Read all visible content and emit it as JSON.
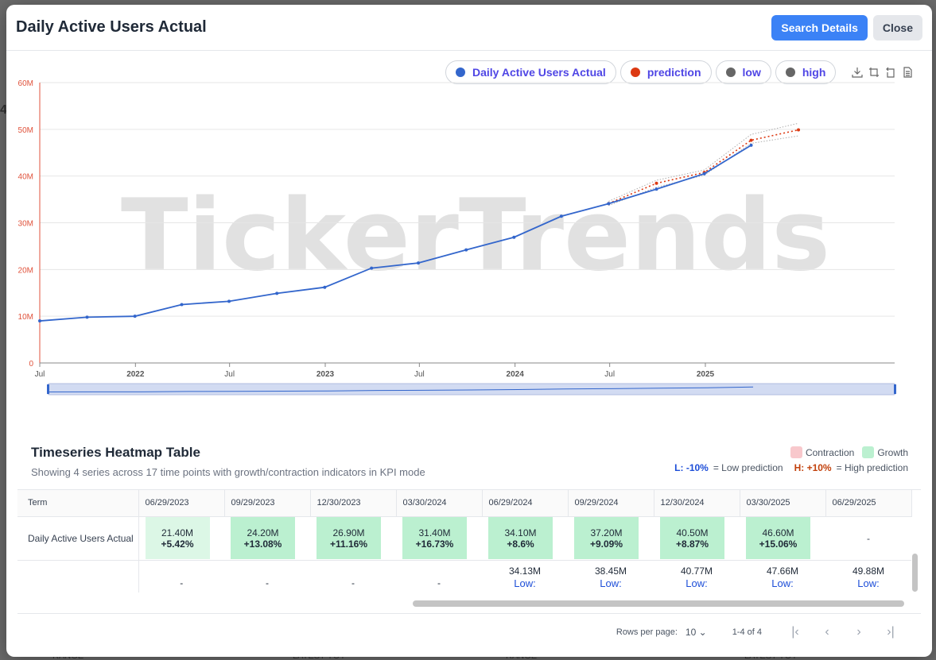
{
  "modal": {
    "title": "Daily Active Users Actual",
    "search_button": "Search Details",
    "close_button": "Close"
  },
  "legend": [
    {
      "label": "Daily Active Users Actual",
      "color": "#3366cc"
    },
    {
      "label": "prediction",
      "color": "#dc3912"
    },
    {
      "label": "low",
      "color": "#666666"
    },
    {
      "label": "high",
      "color": "#666666"
    }
  ],
  "watermark": "TickerTrends",
  "chart_data": {
    "type": "line",
    "y_ticks": [
      "0",
      "10M",
      "20M",
      "30M",
      "40M",
      "50M",
      "60M"
    ],
    "ylim": [
      0,
      60000000
    ],
    "x_ticks": [
      "Jul",
      "2022",
      "Jul",
      "2023",
      "Jul",
      "2024",
      "Jul",
      "2025"
    ],
    "x_tick_dates": [
      "2021-07-01",
      "2022-01-01",
      "2022-07-01",
      "2023-01-01",
      "2023-07-01",
      "2024-01-01",
      "2024-07-01",
      "2025-01-01"
    ],
    "xlim": [
      "2021-07-01",
      "2025-12-31"
    ],
    "grid": true,
    "series": [
      {
        "name": "Daily Active Users Actual",
        "color": "#3366cc",
        "style": "solid",
        "x": [
          "2021-07-01",
          "2021-09-30",
          "2021-12-31",
          "2022-03-31",
          "2022-06-30",
          "2022-09-30",
          "2022-12-31",
          "2023-03-31",
          "2023-06-29",
          "2023-09-29",
          "2023-12-30",
          "2024-03-30",
          "2024-06-29",
          "2024-09-29",
          "2024-12-30",
          "2025-03-30"
        ],
        "values": [
          9.0,
          9.8,
          10.0,
          12.5,
          13.2,
          14.9,
          16.2,
          20.3,
          21.4,
          24.2,
          26.9,
          31.4,
          34.1,
          37.2,
          40.5,
          46.6
        ]
      },
      {
        "name": "prediction",
        "color": "#dc3912",
        "style": "dotted",
        "x": [
          "2024-06-29",
          "2024-09-29",
          "2024-12-30",
          "2025-03-30",
          "2025-06-29"
        ],
        "values": [
          34.13,
          38.45,
          40.77,
          47.66,
          49.88
        ]
      },
      {
        "name": "low",
        "color": "#999999",
        "style": "dotted",
        "x": [
          "2024-06-29",
          "2024-09-29",
          "2024-12-30",
          "2025-03-30",
          "2025-06-29"
        ],
        "values": [
          33.7,
          37.6,
          40.2,
          47.0,
          48.6
        ]
      },
      {
        "name": "high",
        "color": "#999999",
        "style": "dotted",
        "x": [
          "2024-06-29",
          "2024-09-29",
          "2024-12-30",
          "2025-03-30",
          "2025-06-29"
        ],
        "values": [
          34.6,
          39.1,
          41.3,
          48.9,
          51.3
        ]
      }
    ]
  },
  "heatmap": {
    "title": "Timeseries Heatmap Table",
    "subtitle": "Showing 4 series across 17 time points with growth/contraction indicators in KPI mode",
    "legend_contraction": "Contraction",
    "legend_growth": "Growth",
    "low_tag": "L: -10%",
    "low_desc": "= Low prediction",
    "high_tag": "H: +10%",
    "high_desc": "= High prediction",
    "colors": {
      "contraction": "#f8c8cc",
      "growth": "#bbf0d0",
      "growth_light": "#dcf7e6"
    },
    "columns": [
      "Term",
      "06/29/2023",
      "09/29/2023",
      "12/30/2023",
      "03/30/2024",
      "06/29/2024",
      "09/29/2024",
      "12/30/2024",
      "03/30/2025",
      "06/29/2025"
    ],
    "row1": {
      "term": "Daily Active Users Actual",
      "cells": [
        {
          "value": "21.40M",
          "pct": "+5.42%",
          "light": true
        },
        {
          "value": "24.20M",
          "pct": "+13.08%",
          "light": false
        },
        {
          "value": "26.90M",
          "pct": "+11.16%",
          "light": false
        },
        {
          "value": "31.40M",
          "pct": "+16.73%",
          "light": false
        },
        {
          "value": "34.10M",
          "pct": "+8.6%",
          "light": false
        },
        {
          "value": "37.20M",
          "pct": "+9.09%",
          "light": false
        },
        {
          "value": "40.50M",
          "pct": "+8.87%",
          "light": false
        },
        {
          "value": "46.60M",
          "pct": "+15.06%",
          "light": false
        },
        {
          "value": "-",
          "pct": "",
          "light": null
        }
      ]
    },
    "row2": {
      "term": "",
      "cells": [
        {
          "value": "-",
          "low": ""
        },
        {
          "value": "-",
          "low": ""
        },
        {
          "value": "-",
          "low": ""
        },
        {
          "value": "-",
          "low": ""
        },
        {
          "value": "34.13M",
          "low": "Low:"
        },
        {
          "value": "38.45M",
          "low": "Low:"
        },
        {
          "value": "40.77M",
          "low": "Low:"
        },
        {
          "value": "47.66M",
          "low": "Low:"
        },
        {
          "value": "49.88M",
          "low": "Low:"
        }
      ]
    },
    "pager": {
      "rows_per_page_label": "Rows per page:",
      "rows_per_page": "10",
      "range": "1-4 of 4"
    }
  }
}
